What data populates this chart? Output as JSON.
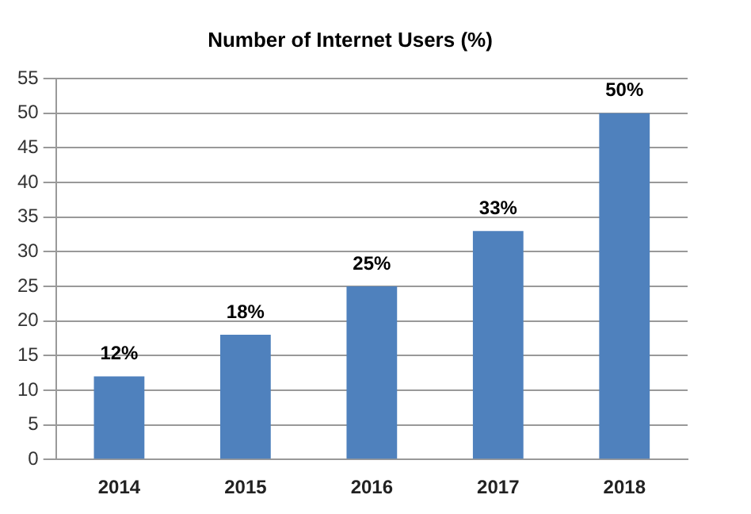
{
  "chart_data": {
    "type": "bar",
    "title": "Number of Internet Users (%)",
    "categories": [
      "2014",
      "2015",
      "2016",
      "2017",
      "2018"
    ],
    "values": [
      12,
      18,
      25,
      33,
      50
    ],
    "value_labels": [
      "12%",
      "18%",
      "25%",
      "33%",
      "50%"
    ],
    "color": "#4f81bd",
    "ylim": [
      0,
      55
    ],
    "yticks": [
      0,
      5,
      10,
      15,
      20,
      25,
      30,
      35,
      40,
      45,
      50,
      55
    ],
    "grid": "y"
  }
}
